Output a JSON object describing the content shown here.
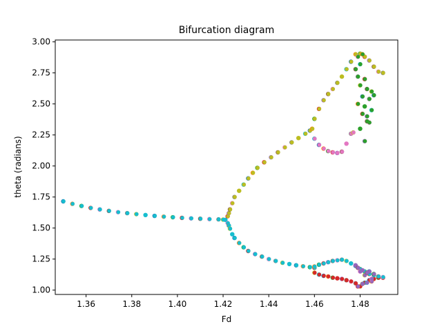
{
  "chart_data": {
    "type": "scatter",
    "title": "Bifurcation diagram",
    "xlabel": "Fd",
    "ylabel": "theta (radians)",
    "xlim": [
      1.3465,
      1.4965
    ],
    "ylim": [
      0.965,
      3.015
    ],
    "xticks": [
      1.36,
      1.38,
      1.4,
      1.42,
      1.44,
      1.46,
      1.48
    ],
    "xtick_labels": [
      "1.36",
      "1.38",
      "1.40",
      "1.42",
      "1.44",
      "1.46",
      "1.48"
    ],
    "yticks": [
      1.0,
      1.25,
      1.5,
      1.75,
      2.0,
      2.25,
      2.5,
      2.75,
      3.0
    ],
    "ytick_labels": [
      "1.00",
      "1.25",
      "1.50",
      "1.75",
      "2.00",
      "2.25",
      "2.50",
      "2.75",
      "3.00"
    ],
    "grid": false,
    "legend": "none",
    "palette": [
      "#1f77b4",
      "#ff7f0e",
      "#2ca02c",
      "#d62728",
      "#9467bd",
      "#8c564b",
      "#e377c2",
      "#7f7f7f",
      "#bcbd22",
      "#17becf"
    ],
    "branches": [
      {
        "name": "single",
        "color": "#17becf",
        "x": [
          1.35,
          1.354,
          1.358,
          1.362,
          1.366,
          1.37,
          1.374,
          1.378,
          1.382,
          1.386,
          1.39,
          1.394,
          1.398,
          1.402,
          1.406,
          1.41,
          1.414,
          1.418,
          1.42,
          1.421
        ],
        "y": [
          1.715,
          1.695,
          1.678,
          1.662,
          1.65,
          1.638,
          1.628,
          1.62,
          1.612,
          1.605,
          1.598,
          1.592,
          1.587,
          1.582,
          1.578,
          1.575,
          1.572,
          1.57,
          1.568,
          1.566
        ]
      },
      {
        "name": "upper",
        "color": "#bcbd22",
        "x": [
          1.422,
          1.4225,
          1.423,
          1.424,
          1.425,
          1.427,
          1.429,
          1.431,
          1.433,
          1.435,
          1.438,
          1.441,
          1.444,
          1.447,
          1.45,
          1.453,
          1.456,
          1.458,
          1.459
        ],
        "y": [
          1.595,
          1.62,
          1.65,
          1.7,
          1.75,
          1.8,
          1.85,
          1.9,
          1.945,
          1.985,
          2.03,
          2.07,
          2.11,
          2.15,
          2.19,
          2.225,
          2.26,
          2.285,
          2.3
        ]
      },
      {
        "name": "lower",
        "color": "#17becf",
        "x": [
          1.422,
          1.4225,
          1.423,
          1.424,
          1.425,
          1.427,
          1.429,
          1.431,
          1.434,
          1.437,
          1.44,
          1.443,
          1.446,
          1.449,
          1.452,
          1.455,
          1.458,
          1.46
        ],
        "y": [
          1.54,
          1.52,
          1.495,
          1.45,
          1.42,
          1.38,
          1.345,
          1.315,
          1.29,
          1.27,
          1.25,
          1.235,
          1.22,
          1.21,
          1.2,
          1.192,
          1.185,
          1.18
        ]
      },
      {
        "name": "upper-dip",
        "color": "#e377c2",
        "x": [
          1.46,
          1.462,
          1.464,
          1.466,
          1.468,
          1.47,
          1.472,
          1.474,
          1.476,
          1.477
        ],
        "y": [
          2.22,
          2.17,
          2.14,
          2.12,
          2.11,
          2.105,
          2.115,
          2.18,
          2.26,
          2.27
        ]
      },
      {
        "name": "upper-rise",
        "color": "#bcbd22",
        "x": [
          1.46,
          1.462,
          1.464,
          1.466,
          1.468,
          1.47,
          1.472,
          1.474,
          1.476,
          1.478,
          1.48,
          1.482,
          1.484,
          1.486,
          1.488,
          1.49
        ],
        "y": [
          2.38,
          2.46,
          2.53,
          2.58,
          2.62,
          2.67,
          2.72,
          2.78,
          2.84,
          2.9,
          2.905,
          2.88,
          2.85,
          2.8,
          2.76,
          2.75
        ]
      },
      {
        "name": "chaotic-upper",
        "color": "#2ca02c",
        "x": [
          1.478,
          1.479,
          1.479,
          1.48,
          1.48,
          1.481,
          1.481,
          1.482,
          1.482,
          1.483,
          1.483,
          1.484,
          1.484,
          1.485,
          1.485,
          1.486,
          1.479,
          1.48,
          1.481,
          1.482,
          1.483
        ],
        "y": [
          2.78,
          2.88,
          2.72,
          2.65,
          2.82,
          2.56,
          2.9,
          2.48,
          2.7,
          2.4,
          2.62,
          2.35,
          2.54,
          2.6,
          2.45,
          2.57,
          2.5,
          2.3,
          2.42,
          2.2,
          2.36
        ]
      },
      {
        "name": "lower-loop",
        "color": "#d62728",
        "x": [
          1.46,
          1.462,
          1.464,
          1.466,
          1.468,
          1.47,
          1.472,
          1.474,
          1.476,
          1.478,
          1.48,
          1.482,
          1.484,
          1.486,
          1.488,
          1.49
        ],
        "y": [
          1.14,
          1.125,
          1.115,
          1.11,
          1.1,
          1.095,
          1.09,
          1.08,
          1.07,
          1.055,
          1.03,
          1.06,
          1.08,
          1.09,
          1.1,
          1.1
        ]
      },
      {
        "name": "lower-arch",
        "color": "#17becf",
        "x": [
          1.46,
          1.462,
          1.464,
          1.466,
          1.468,
          1.47,
          1.472,
          1.474,
          1.476,
          1.478,
          1.48,
          1.482,
          1.484,
          1.486,
          1.488,
          1.49
        ],
        "y": [
          1.19,
          1.205,
          1.215,
          1.225,
          1.235,
          1.24,
          1.245,
          1.235,
          1.215,
          1.195,
          1.17,
          1.15,
          1.13,
          1.12,
          1.11,
          1.105
        ]
      },
      {
        "name": "chaotic-lower",
        "color": "#9467bd",
        "x": [
          1.478,
          1.479,
          1.48,
          1.481,
          1.482,
          1.483,
          1.484,
          1.485,
          1.486,
          1.479,
          1.481,
          1.483,
          1.485
        ],
        "y": [
          1.2,
          1.18,
          1.15,
          1.05,
          1.12,
          1.06,
          1.15,
          1.07,
          1.13,
          1.03,
          1.16,
          1.14,
          1.09
        ]
      }
    ]
  }
}
